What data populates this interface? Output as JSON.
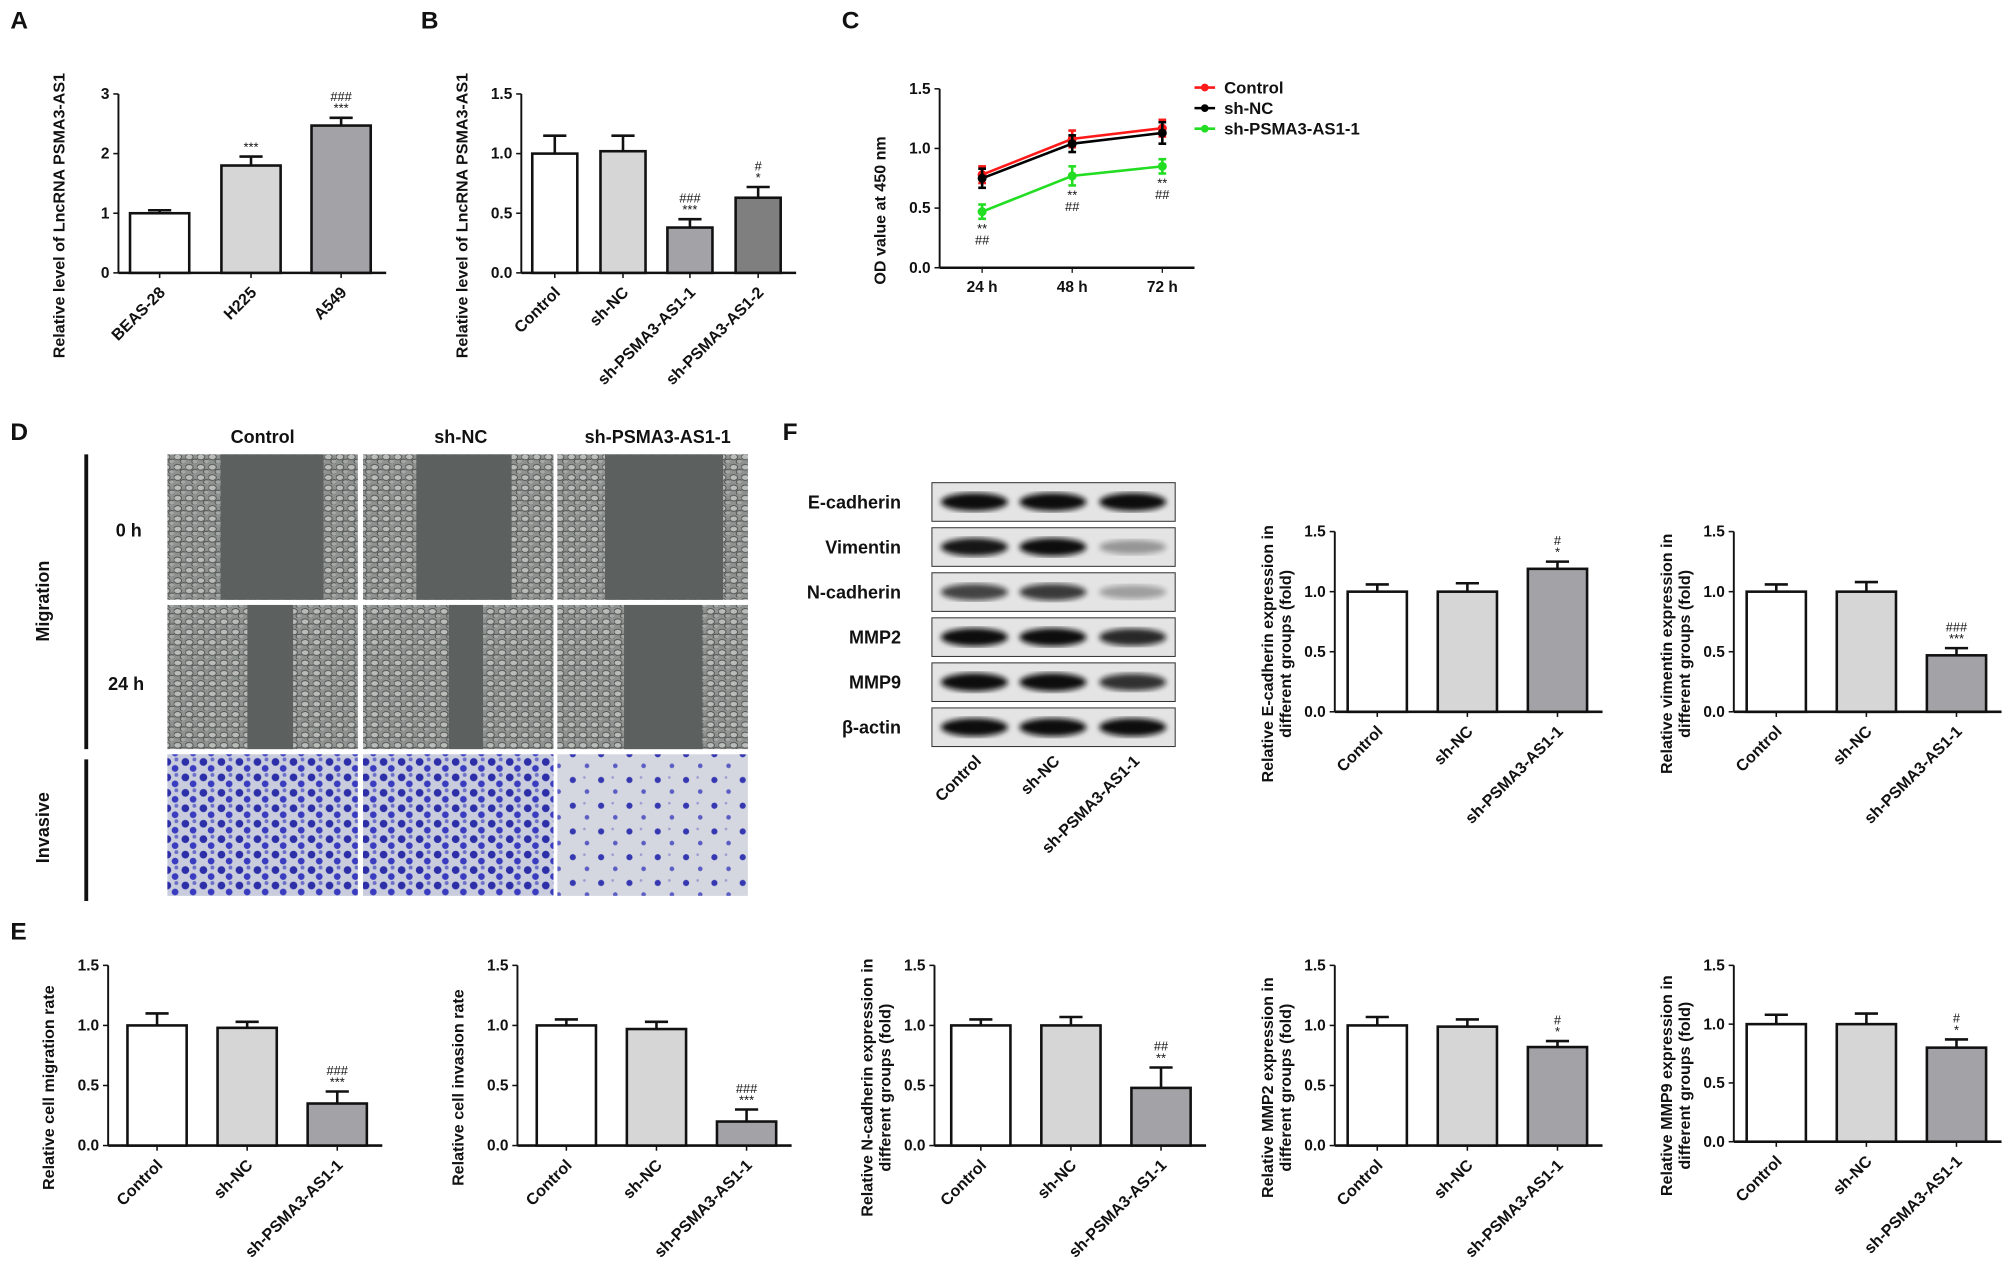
{
  "panel_letters": {
    "A": "A",
    "B": "B",
    "C": "C",
    "D": "D",
    "E": "E",
    "F": "F"
  },
  "panel_d": {
    "columns": [
      "Control",
      "sh-NC",
      "sh-PSMA3-AS1-1"
    ],
    "row_groups": {
      "migration": "Migration",
      "invasive": "Invasive"
    },
    "time_labels": [
      "0 h",
      "24 h"
    ]
  },
  "panel_f_blot": {
    "proteins": [
      "E-cadherin",
      "Vimentin",
      "N-cadherin",
      "MMP2",
      "MMP9",
      "β-actin"
    ],
    "lanes": [
      "Control",
      "sh-NC",
      "sh-PSMA3-AS1-1"
    ],
    "band_intensity": [
      [
        1,
        1,
        1
      ],
      [
        0.95,
        1,
        0.25
      ],
      [
        0.7,
        0.75,
        0.2
      ],
      [
        1,
        1,
        0.85
      ],
      [
        1,
        1,
        0.8
      ],
      [
        1,
        1,
        1
      ]
    ]
  },
  "chart_data": [
    {
      "id": "A",
      "type": "bar",
      "ylabel": [
        "Relative level of LncRNA PSMA3-AS1"
      ],
      "categories": [
        "BEAS-28",
        "H225",
        "A549"
      ],
      "values": [
        1.0,
        1.8,
        2.47
      ],
      "errors": [
        0.05,
        0.15,
        0.13
      ],
      "annotations": [
        [],
        [
          "***"
        ],
        [
          "###",
          "***"
        ]
      ],
      "ylim": [
        0,
        3
      ],
      "yticks": [
        "0",
        "1",
        "2",
        "3"
      ],
      "colors": [
        "#ffffff",
        "#d6d6d6",
        "#a3a3a7"
      ]
    },
    {
      "id": "B",
      "type": "bar",
      "ylabel": [
        "Relative level of LncRNA PSMA3-AS1"
      ],
      "categories": [
        "Control",
        "sh-NC",
        "sh-PSMA3-AS1-1",
        "sh-PSMA3-AS1-2"
      ],
      "values": [
        1.0,
        1.02,
        0.38,
        0.63
      ],
      "errors": [
        0.15,
        0.13,
        0.07,
        0.09
      ],
      "annotations": [
        [],
        [],
        [
          "###",
          "***"
        ],
        [
          "#",
          "*"
        ]
      ],
      "ylim": [
        0,
        1.5
      ],
      "yticks": [
        "0.0",
        "0.5",
        "1.0",
        "1.5"
      ],
      "colors": [
        "#ffffff",
        "#d6d6d6",
        "#a3a3a7",
        "#7f7f7f"
      ]
    },
    {
      "id": "C",
      "type": "line",
      "ylabel": [
        "OD value at 450 nm"
      ],
      "x": [
        "24 h",
        "48 h",
        "72 h"
      ],
      "ylim": [
        0,
        1.5
      ],
      "yticks": [
        "0.0",
        "0.5",
        "1.0",
        "1.5"
      ],
      "legend_position": "top-right",
      "series": [
        {
          "name": "Control",
          "color": "#ff1a1a",
          "marker": "circle",
          "values": [
            0.78,
            1.08,
            1.17
          ],
          "errors": [
            0.07,
            0.07,
            0.07
          ]
        },
        {
          "name": "sh-NC",
          "color": "#000000",
          "marker": "square",
          "values": [
            0.75,
            1.04,
            1.13
          ],
          "errors": [
            0.08,
            0.07,
            0.09
          ]
        },
        {
          "name": "sh-PSMA3-AS1-1",
          "color": "#22dd22",
          "marker": "triangle",
          "values": [
            0.47,
            0.77,
            0.85
          ],
          "errors": [
            0.06,
            0.08,
            0.06
          ],
          "annotations": [
            [
              "**",
              "##"
            ],
            [
              "**",
              "##"
            ],
            [
              "**",
              "##"
            ]
          ]
        }
      ]
    },
    {
      "id": "F1",
      "type": "bar",
      "ylabel": [
        "Relative E-cadherin expression in",
        "different groups (fold)"
      ],
      "categories": [
        "Control",
        "sh-NC",
        "sh-PSMA3-AS1-1"
      ],
      "values": [
        1.0,
        1.0,
        1.19
      ],
      "errors": [
        0.06,
        0.07,
        0.06
      ],
      "annotations": [
        [],
        [],
        [
          "#",
          "*"
        ]
      ],
      "ylim": [
        0,
        1.5
      ],
      "yticks": [
        "0.0",
        "0.5",
        "1.0",
        "1.5"
      ],
      "colors": [
        "#ffffff",
        "#d6d6d6",
        "#a3a3a7"
      ]
    },
    {
      "id": "F2",
      "type": "bar",
      "ylabel": [
        "Relative vimentin expression in",
        "different groups (fold)"
      ],
      "categories": [
        "Control",
        "sh-NC",
        "sh-PSMA3-AS1-1"
      ],
      "values": [
        1.0,
        1.0,
        0.47
      ],
      "errors": [
        0.06,
        0.08,
        0.06
      ],
      "annotations": [
        [],
        [],
        [
          "###",
          "***"
        ]
      ],
      "ylim": [
        0,
        1.5
      ],
      "yticks": [
        "0.0",
        "0.5",
        "1.0",
        "1.5"
      ],
      "colors": [
        "#ffffff",
        "#d6d6d6",
        "#a3a3a7"
      ]
    },
    {
      "id": "E1",
      "type": "bar",
      "ylabel": [
        "Relative cell migration rate"
      ],
      "categories": [
        "Control",
        "sh-NC",
        "sh-PSMA3-AS1-1"
      ],
      "values": [
        1.0,
        0.98,
        0.35
      ],
      "errors": [
        0.1,
        0.05,
        0.1
      ],
      "annotations": [
        [],
        [],
        [
          "###",
          "***"
        ]
      ],
      "ylim": [
        0,
        1.5
      ],
      "yticks": [
        "0.0",
        "0.5",
        "1.0",
        "1.5"
      ],
      "colors": [
        "#ffffff",
        "#d6d6d6",
        "#a3a3a7"
      ]
    },
    {
      "id": "E2",
      "type": "bar",
      "ylabel": [
        "Relative cell invasion rate"
      ],
      "categories": [
        "Control",
        "sh-NC",
        "sh-PSMA3-AS1-1"
      ],
      "values": [
        1.0,
        0.97,
        0.2
      ],
      "errors": [
        0.05,
        0.06,
        0.1
      ],
      "annotations": [
        [],
        [],
        [
          "###",
          "***"
        ]
      ],
      "ylim": [
        0,
        1.5
      ],
      "yticks": [
        "0.0",
        "0.5",
        "1.0",
        "1.5"
      ],
      "colors": [
        "#ffffff",
        "#d6d6d6",
        "#a3a3a7"
      ]
    },
    {
      "id": "F3",
      "type": "bar",
      "ylabel": [
        "Relative N-cadherin expression in",
        "different groups (fold)"
      ],
      "categories": [
        "Control",
        "sh-NC",
        "sh-PSMA3-AS1-1"
      ],
      "values": [
        1.0,
        1.0,
        0.48
      ],
      "errors": [
        0.05,
        0.07,
        0.17
      ],
      "annotations": [
        [],
        [],
        [
          "##",
          "**"
        ]
      ],
      "ylim": [
        0,
        1.5
      ],
      "yticks": [
        "0.0",
        "0.5",
        "1.0",
        "1.5"
      ],
      "colors": [
        "#ffffff",
        "#d6d6d6",
        "#a3a3a7"
      ]
    },
    {
      "id": "F4",
      "type": "bar",
      "ylabel": [
        "Relative MMP2 expression in",
        "different groups (fold)"
      ],
      "categories": [
        "Control",
        "sh-NC",
        "sh-PSMA3-AS1-1"
      ],
      "values": [
        1.0,
        0.99,
        0.82
      ],
      "errors": [
        0.07,
        0.06,
        0.05
      ],
      "annotations": [
        [],
        [],
        [
          "#",
          "*"
        ]
      ],
      "ylim": [
        0,
        1.5
      ],
      "yticks": [
        "0.0",
        "0.5",
        "1.0",
        "1.5"
      ],
      "colors": [
        "#ffffff",
        "#d6d6d6",
        "#a3a3a7"
      ]
    },
    {
      "id": "F5",
      "type": "bar",
      "ylabel": [
        "Relative MMP9 expression in",
        "different groups (fold)"
      ],
      "categories": [
        "Control",
        "sh-NC",
        "sh-PSMA3-AS1-1"
      ],
      "values": [
        1.0,
        1.0,
        0.8
      ],
      "errors": [
        0.08,
        0.09,
        0.07
      ],
      "annotations": [
        [],
        [],
        [
          "#",
          "*"
        ]
      ],
      "ylim": [
        0,
        1.5
      ],
      "yticks": [
        "0.0",
        "0.5",
        "1.0",
        "1.5"
      ],
      "colors": [
        "#ffffff",
        "#d6d6d6",
        "#a3a3a7"
      ]
    }
  ]
}
